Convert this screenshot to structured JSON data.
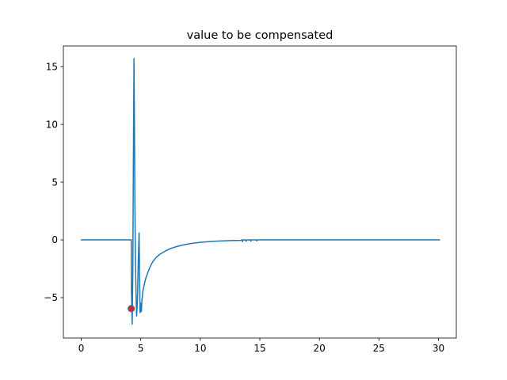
{
  "chart_data": {
    "type": "line",
    "title": "value to be compensated",
    "xlabel": "",
    "ylabel": "",
    "xlim": [
      -1.5,
      31.5
    ],
    "ylim": [
      -8.5,
      16.8
    ],
    "x_ticks": [
      0,
      5,
      10,
      15,
      20,
      25,
      30
    ],
    "y_ticks": [
      -5,
      0,
      5,
      10,
      15
    ],
    "x_tick_labels": [
      "0",
      "5",
      "10",
      "15",
      "20",
      "25",
      "30"
    ],
    "y_tick_labels": [
      "−5",
      "0",
      "5",
      "10",
      "15"
    ],
    "grid": false,
    "legend": "none",
    "series": [
      {
        "color": "#1f77b4",
        "x": [
          0,
          4.2,
          4.22,
          4.28,
          4.33,
          4.38,
          4.43,
          4.47,
          4.5,
          4.55,
          4.6,
          4.65,
          4.72,
          4.8,
          4.86,
          4.9,
          4.94,
          5.0,
          5.05,
          5.1,
          5.2,
          5.4,
          5.6,
          5.8,
          6.0,
          6.3,
          6.6,
          7.0,
          7.5,
          8.0,
          8.5,
          9.0,
          9.5,
          10.0,
          10.5,
          11.0,
          11.5,
          12.0,
          12.5,
          13.0,
          13.4,
          13.5,
          13.55,
          13.6,
          13.8,
          13.85,
          13.9,
          14.2,
          14.25,
          14.3,
          14.7,
          14.75,
          14.8,
          30.1
        ],
        "y": [
          0,
          0,
          -4.5,
          -7.3,
          -3.0,
          7.0,
          15.7,
          10.0,
          4.0,
          -1.5,
          -4.5,
          -6.6,
          -5.3,
          -1.5,
          0.6,
          -3.0,
          -6.3,
          -5.5,
          -6.2,
          -5.2,
          -4.3,
          -3.4,
          -2.8,
          -2.3,
          -1.9,
          -1.5,
          -1.25,
          -1.0,
          -0.75,
          -0.58,
          -0.45,
          -0.35,
          -0.27,
          -0.21,
          -0.17,
          -0.13,
          -0.1,
          -0.08,
          -0.06,
          -0.05,
          -0.04,
          0.0,
          -0.15,
          0.0,
          0.0,
          -0.12,
          0.0,
          0.0,
          -0.1,
          0.0,
          0.0,
          -0.08,
          0.0,
          0.0
        ]
      }
    ],
    "markers": [
      {
        "x": 4.2,
        "y": -5.95,
        "color": "#d62728"
      }
    ],
    "marker_color": "#1f77b4"
  }
}
